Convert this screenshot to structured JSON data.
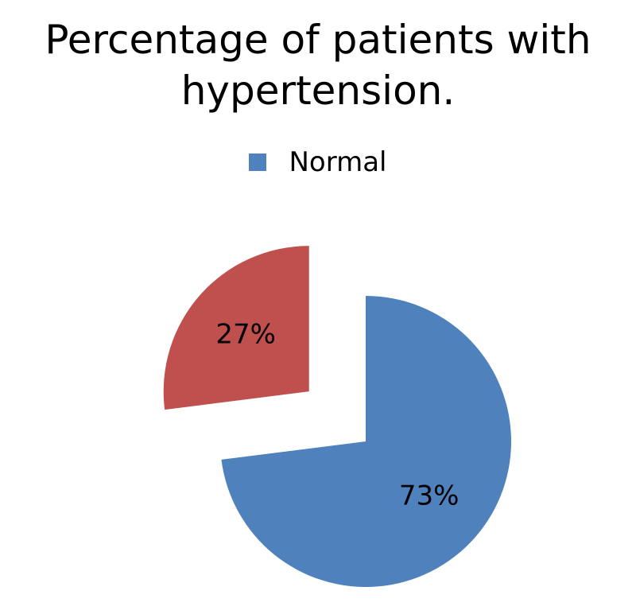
{
  "chart_data": {
    "type": "pie",
    "title": "Percentage of patients with hypertension.",
    "slices": [
      {
        "name": "Normal",
        "value": 73,
        "label": "73%",
        "color": "#4F81BD",
        "exploded": false
      },
      {
        "label": "27%",
        "value": 27,
        "color": "#C0504D",
        "exploded": true
      }
    ],
    "legend": {
      "position": "top",
      "entries": [
        {
          "name": "Normal",
          "color": "#4F81BD"
        }
      ]
    }
  }
}
